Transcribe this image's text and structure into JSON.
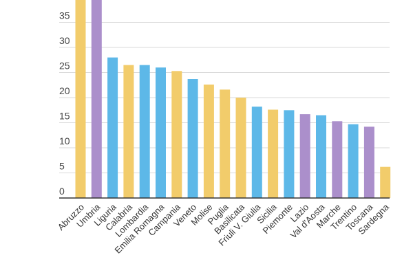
{
  "chart_data": {
    "type": "bar",
    "categories": [
      "Abruzzo",
      "Umbria",
      "Liguria",
      "Calabria",
      "Lombardia",
      "Emilia Romagna",
      "Campania",
      "Veneto",
      "Molise",
      "Puglia",
      "Basilicata",
      "Friuli V. Giulia",
      "Sicilia",
      "Piemonte",
      "Lazio",
      "Val d'Aosta",
      "Marche",
      "Trentino",
      "Toscana",
      "Sardegna"
    ],
    "values": [
      40,
      40,
      28,
      26.5,
      26.5,
      26,
      25.3,
      23.7,
      22.6,
      21.6,
      20,
      18.2,
      17.6,
      17.5,
      16.7,
      16.5,
      15.3,
      14.7,
      14.2,
      6.2
    ],
    "bar_colors": [
      "#F2CC6B",
      "#AB8FCB",
      "#5DB8E8",
      "#F2CC6B",
      "#5DB8E8",
      "#5DB8E8",
      "#F2CC6B",
      "#5DB8E8",
      "#F2CC6B",
      "#F2CC6B",
      "#F2CC6B",
      "#5DB8E8",
      "#F2CC6B",
      "#5DB8E8",
      "#AB8FCB",
      "#5DB8E8",
      "#AB8FCB",
      "#5DB8E8",
      "#AB8FCB",
      "#F2CC6B"
    ],
    "y_ticks": [
      "0",
      "5",
      "10",
      "15",
      "20",
      "25",
      "30",
      "35"
    ],
    "ylim": [
      0,
      40
    ],
    "grid": true,
    "title": "",
    "xlabel": "",
    "ylabel": ""
  }
}
